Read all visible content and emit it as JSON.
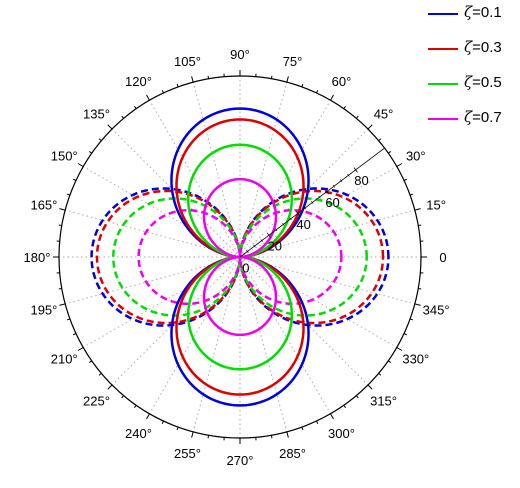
{
  "chart_data": {
    "type": "polar-line",
    "angle_ticks": [
      "0",
      "15°",
      "30°",
      "45°",
      "60°",
      "75°",
      "90°",
      "105°",
      "120°",
      "135°",
      "150°",
      "165°",
      "180°",
      "195°",
      "210°",
      "225°",
      "240°",
      "255°",
      "270°",
      "285°",
      "300°",
      "315°",
      "330°",
      "345°"
    ],
    "radial_ticks": [
      "0",
      "20",
      "40",
      "60",
      "80"
    ],
    "radial_range": [
      0,
      100
    ],
    "radial_axis_angle_deg": 37,
    "grid": true,
    "legend_position": "top-right",
    "series": [
      {
        "name": "ζ=0.1",
        "color": "#0000dd",
        "solid_peak": 82,
        "dashed_peak": 82
      },
      {
        "name": "ζ=0.3",
        "color": "#dd0000",
        "solid_peak": 76,
        "dashed_peak": 79
      },
      {
        "name": "ζ=0.5",
        "color": "#00dd00",
        "solid_peak": 62,
        "dashed_peak": 70
      },
      {
        "name": "ζ=0.7",
        "color": "#ee00ee",
        "solid_peak": 43,
        "dashed_peak": 56
      }
    ]
  },
  "legend": {
    "items": [
      {
        "symbol": "ζ",
        "value": "=0.1",
        "color": "#0000dd"
      },
      {
        "symbol": "ζ",
        "value": "=0.3",
        "color": "#dd0000"
      },
      {
        "symbol": "ζ",
        "value": "=0.5",
        "color": "#00dd00"
      },
      {
        "symbol": "ζ",
        "value": "=0.7",
        "color": "#ee00ee"
      }
    ]
  }
}
